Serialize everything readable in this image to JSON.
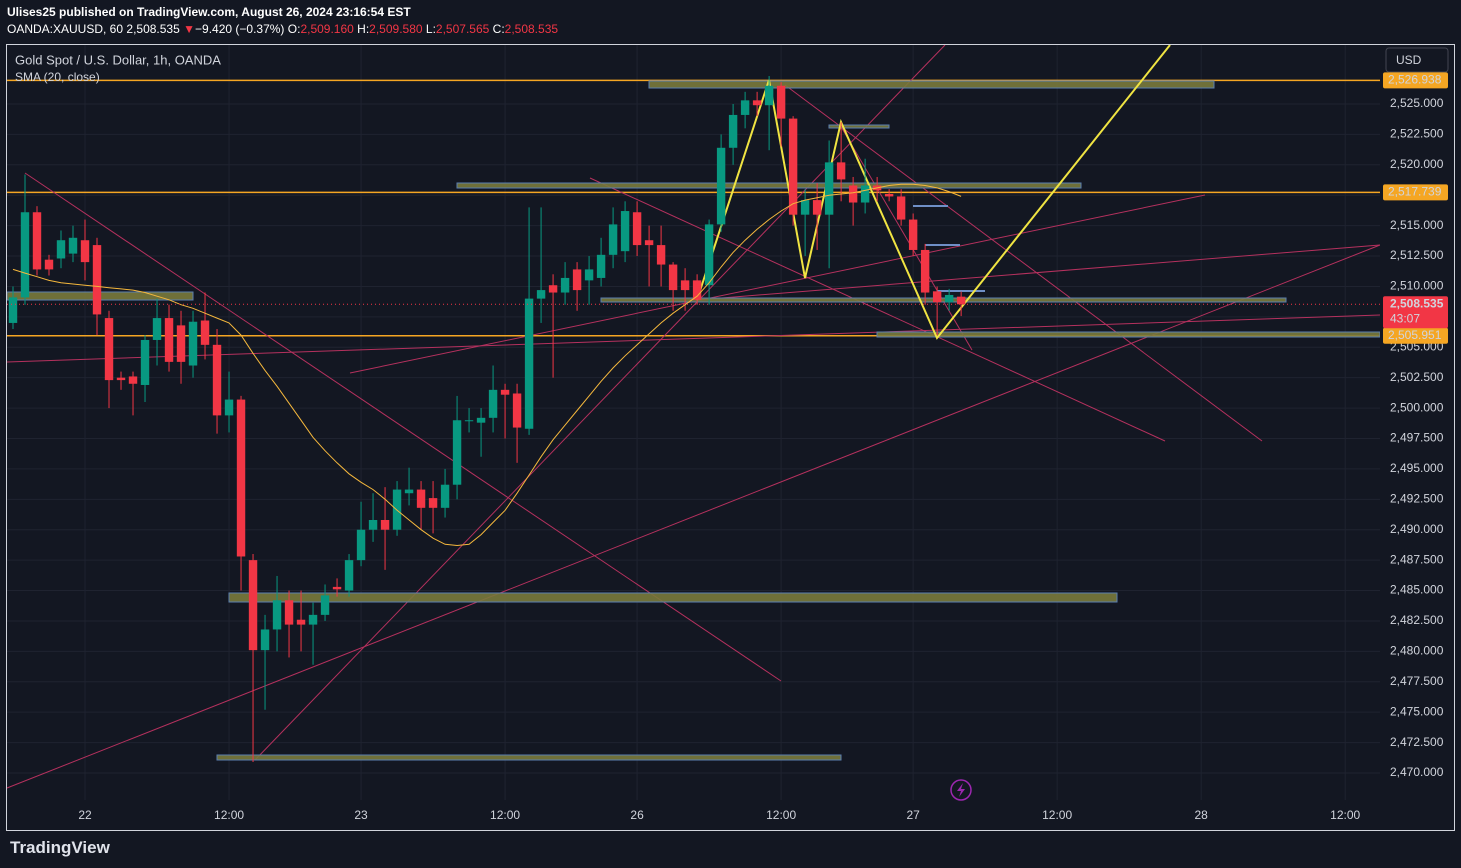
{
  "header": {
    "publisher": "Ulises25 published on TradingView.com, August 26, 2024 23:16:54 EST",
    "symbol": "OANDA:XAUUSD, 60",
    "last": "2,508.535",
    "arrow": "▼",
    "change": "−9.420 (−0.37%)",
    "o_label": "O:",
    "open": "2,509.160",
    "h_label": "H:",
    "high": "2,509.580",
    "l_label": "L:",
    "low": "2,507.565",
    "c_label": "C:",
    "close": "2,508.535"
  },
  "brand": "TradingView",
  "chart_data": {
    "type": "candlestick",
    "title": "Gold Spot / U.S. Dollar, 1h, OANDA",
    "currency": "USD",
    "up_color": "#089981",
    "down_color": "#f23645",
    "open": [
      2507.0,
      2509.1,
      2516.1,
      2512.2,
      2512.3,
      2512.7,
      2513.8,
      2513.4,
      2507.4,
      2502.5,
      2502.6,
      2501.9,
      2505.6,
      2507.4,
      2506.8,
      2503.5,
      2507.2,
      2505.2,
      2499.4,
      2500.7,
      2487.5,
      2480.1,
      2481.8,
      2484.2,
      2482.6,
      2482.2,
      2483.0,
      2485.3,
      2485.0,
      2487.5,
      2490.0,
      2490.8,
      2490.0,
      2493.0,
      2493.3,
      2492.6,
      2491.8,
      2493.7,
      2499.0,
      2498.8,
      2499.2,
      2501.5,
      2501.2,
      2498.3,
      2509.0,
      2510.1,
      2509.5,
      2511.4,
      2510.5,
      2510.7,
      2512.6,
      2512.9,
      2516.1,
      2513.8,
      2513.4,
      2511.8,
      2510.5,
      2510.5,
      2510.1,
      2515.1,
      2521.4,
      2524.1,
      2525.3,
      2524.9,
      2526.5,
      2523.8,
      2515.9,
      2517.1,
      2515.9,
      2520.2,
      2518.3,
      2516.9,
      2518.3,
      2517.6,
      2517.4,
      2515.5,
      2513.0,
      2509.6,
      2508.7,
      2509.16
    ],
    "high": [
      2510.0,
      2519.2,
      2516.6,
      2512.6,
      2514.6,
      2515.0,
      2515.5,
      2514.0,
      2508.0,
      2503.0,
      2503.0,
      2506.0,
      2509.0,
      2508.5,
      2508.0,
      2508.0,
      2509.5,
      2506.5,
      2503.0,
      2501.0,
      2488.0,
      2483.0,
      2486.2,
      2485.0,
      2485.0,
      2484.0,
      2485.5,
      2486.0,
      2488.0,
      2492.3,
      2493.0,
      2493.5,
      2494.0,
      2495.1,
      2494.0,
      2494.0,
      2495.0,
      2501.0,
      2500.0,
      2500.0,
      2503.5,
      2502.0,
      2502.0,
      2516.5,
      2516.5,
      2511.0,
      2512.0,
      2512.0,
      2512.5,
      2514.0,
      2516.5,
      2517.0,
      2517.0,
      2515.0,
      2515.0,
      2512.0,
      2511.5,
      2511.0,
      2515.5,
      2522.5,
      2525.0,
      2526.0,
      2526.0,
      2527.3,
      2526.8,
      2524.0,
      2518.0,
      2518.5,
      2522.0,
      2523.5,
      2519.0,
      2520.5,
      2519.0,
      2518.0,
      2518.0,
      2516.0,
      2513.5,
      2510.0,
      2509.8,
      2509.58
    ],
    "low": [
      2506.5,
      2508.5,
      2510.9,
      2510.9,
      2511.5,
      2512.0,
      2510.5,
      2506.0,
      2500.0,
      2501.5,
      2499.4,
      2500.5,
      2503.5,
      2503.0,
      2502.0,
      2502.5,
      2504.0,
      2497.9,
      2498.0,
      2485.0,
      2470.9,
      2475.2,
      2480.0,
      2479.5,
      2480.0,
      2478.9,
      2482.5,
      2484.5,
      2484.5,
      2487.0,
      2489.0,
      2486.7,
      2489.5,
      2492.0,
      2490.0,
      2489.7,
      2491.0,
      2492.5,
      2498.0,
      2496.0,
      2498.0,
      2497.5,
      2495.5,
      2497.8,
      2507.0,
      2502.5,
      2508.5,
      2508.0,
      2508.5,
      2510.0,
      2511.5,
      2512.0,
      2512.5,
      2510.0,
      2510.0,
      2508.0,
      2508.0,
      2508.5,
      2508.5,
      2514.5,
      2520.0,
      2523.0,
      2524.0,
      2521.2,
      2521.5,
      2515.0,
      2512.5,
      2513.0,
      2511.5,
      2517.0,
      2515.0,
      2516.0,
      2517.0,
      2517.0,
      2515.0,
      2512.5,
      2508.5,
      2506.0,
      2508.0,
      2507.565
    ],
    "close": [
      2509.1,
      2516.1,
      2511.4,
      2511.4,
      2513.8,
      2514.0,
      2512.0,
      2507.7,
      2502.3,
      2502.3,
      2502.0,
      2505.6,
      2507.4,
      2503.8,
      2503.8,
      2507.1,
      2505.2,
      2499.4,
      2500.7,
      2487.8,
      2480.1,
      2481.8,
      2484.2,
      2482.2,
      2482.2,
      2483.0,
      2484.6,
      2485.1,
      2487.5,
      2490.0,
      2490.8,
      2490.0,
      2493.3,
      2493.3,
      2491.8,
      2491.8,
      2493.7,
      2499.0,
      2499.0,
      2499.2,
      2501.5,
      2501.1,
      2498.4,
      2509.0,
      2509.7,
      2509.5,
      2510.7,
      2509.7,
      2511.4,
      2512.6,
      2515.1,
      2516.2,
      2513.4,
      2513.4,
      2511.8,
      2509.7,
      2509.7,
      2508.9,
      2515.1,
      2521.4,
      2524.1,
      2525.3,
      2524.9,
      2526.5,
      2523.8,
      2515.9,
      2517.1,
      2515.9,
      2520.2,
      2518.8,
      2516.9,
      2518.3,
      2517.9,
      2517.4,
      2515.5,
      2513.0,
      2509.5,
      2508.7,
      2509.3,
      2508.535
    ],
    "overlays": [
      {
        "name": "SMA (20, close)",
        "color": "#f5b83d",
        "values": [
          2511.4,
          2511.1,
          2510.8,
          2510.5,
          2510.3,
          2510.2,
          2510.1,
          2510.0,
          2509.9,
          2509.8,
          2509.7,
          2509.5,
          2509.2,
          2508.9,
          2508.5,
          2508.2,
          2507.8,
          2507.4,
          2507.0,
          2506.0,
          2504.5,
          2503.1,
          2501.8,
          2500.4,
          2499.0,
          2497.6,
          2496.5,
          2495.5,
          2494.6,
          2493.9,
          2493.3,
          2492.5,
          2491.6,
          2490.8,
          2490.0,
          2489.3,
          2488.8,
          2488.7,
          2488.8,
          2489.6,
          2490.6,
          2491.6,
          2493.0,
          2494.5,
          2496.0,
          2497.4,
          2498.6,
          2499.8,
          2501.0,
          2502.2,
          2503.3,
          2504.3,
          2505.2,
          2506.1,
          2507.0,
          2507.8,
          2508.5,
          2509.2,
          2510.3,
          2511.6,
          2512.8,
          2513.8,
          2514.7,
          2515.5,
          2516.2,
          2516.8,
          2517.1,
          2517.3,
          2517.5,
          2517.6,
          2517.7,
          2517.9,
          2518.1,
          2518.3,
          2518.4,
          2518.4,
          2518.3,
          2518.1,
          2517.8,
          2517.4
        ]
      }
    ],
    "levels": [
      {
        "value": 2526.938,
        "label": "2,526.938",
        "color": "#f5a623"
      },
      {
        "value": 2517.739,
        "label": "2,517.739",
        "color": "#f5a623"
      },
      {
        "value": 2505.951,
        "label": "2,505.951",
        "color": "#f5a623"
      }
    ],
    "last_price": {
      "value": 2508.535,
      "label": "2,508.535",
      "color": "#f23645"
    },
    "countdown": "43:07",
    "ylim": [
      2467.78,
      2529.85
    ],
    "yticks": [
      {
        "value": 2470,
        "label": "2,470.000"
      },
      {
        "value": 2472.5,
        "label": "2,472.500"
      },
      {
        "value": 2475,
        "label": "2,475.000"
      },
      {
        "value": 2477.5,
        "label": "2,477.500"
      },
      {
        "value": 2480,
        "label": "2,480.000"
      },
      {
        "value": 2482.5,
        "label": "2,482.500"
      },
      {
        "value": 2485,
        "label": "2,485.000"
      },
      {
        "value": 2487.5,
        "label": "2,487.500"
      },
      {
        "value": 2490,
        "label": "2,490.000"
      },
      {
        "value": 2492.5,
        "label": "2,492.500"
      },
      {
        "value": 2495,
        "label": "2,495.000"
      },
      {
        "value": 2497.5,
        "label": "2,497.500"
      },
      {
        "value": 2500,
        "label": "2,500.000"
      },
      {
        "value": 2502.5,
        "label": "2,502.500"
      },
      {
        "value": 2505,
        "label": "2,505.000"
      },
      {
        "value": 2507.5,
        "label": "2,507.500"
      },
      {
        "value": 2510,
        "label": "2,510.000"
      },
      {
        "value": 2512.5,
        "label": "2,512.500"
      },
      {
        "value": 2515,
        "label": "2,515.000"
      },
      {
        "value": 2517.5,
        "label": "2,517.500"
      },
      {
        "value": 2520,
        "label": "2,520.000"
      },
      {
        "value": 2522.5,
        "label": "2,522.500"
      },
      {
        "value": 2525,
        "label": "2,525.000"
      }
    ],
    "xlim": [
      -0.5,
      113.9
    ],
    "xticks": [
      {
        "value": 6,
        "label": "22"
      },
      {
        "value": 18,
        "label": "12:00"
      },
      {
        "value": 29,
        "label": "23"
      },
      {
        "value": 41,
        "label": "12:00"
      },
      {
        "value": 52,
        "label": "26"
      },
      {
        "value": 64,
        "label": "12:00"
      },
      {
        "value": 75,
        "label": "27"
      },
      {
        "value": 87,
        "label": "12:00"
      },
      {
        "value": 99,
        "label": "28"
      },
      {
        "value": 111,
        "label": "12:00"
      }
    ],
    "grid": true
  }
}
